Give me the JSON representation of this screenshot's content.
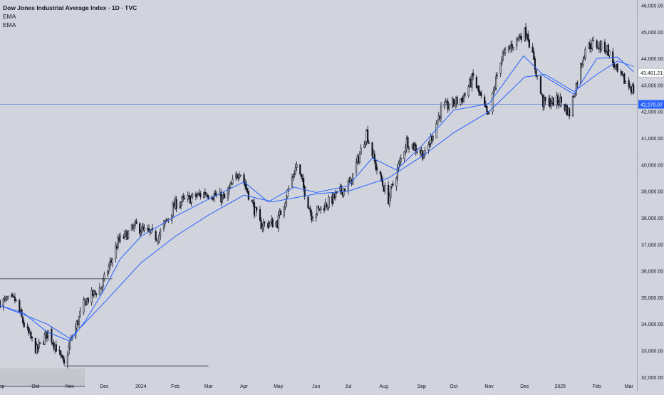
{
  "header": {
    "title": "Dow Jones Industrial Average Index · 1D · TVC",
    "indicators": [
      "EMA",
      "EMA"
    ]
  },
  "colors": {
    "background": "#d1d4dc",
    "candle": "#131722",
    "ema": "#2962ff",
    "hline": "#5b7fd6",
    "current_price_label_bg": "#ffffff",
    "hline_label_bg": "#2962ff"
  },
  "chart_data": {
    "type": "candlestick",
    "title": "Dow Jones Industrial Average Index · 1D · TVC",
    "ylim": [
      31700,
      46200
    ],
    "y_ticks": [
      32000,
      33000,
      34000,
      35000,
      36000,
      37000,
      38000,
      39000,
      40000,
      41000,
      42000,
      43000,
      44000,
      45000,
      46000
    ],
    "y_tick_labels": [
      "32,000.00",
      "33,000.00",
      "34,000.00",
      "35,000.00",
      "36,000.00",
      "37,000.00",
      "38,000.00",
      "39,000.00",
      "40,000.00",
      "41,000.00",
      "42,000.00",
      "43,000.00",
      "44,000.00",
      "45,000.00",
      "46,000.00"
    ],
    "x_tick_labels": [
      "Sep",
      "Oct",
      "Nov",
      "Dec",
      "2024",
      "Feb",
      "Mar",
      "Apr",
      "May",
      "Jun",
      "Jul",
      "Aug",
      "Sep",
      "Oct",
      "Nov",
      "Dec",
      "2025",
      "Feb",
      "Mar"
    ],
    "x_range": [
      "2023-09-01",
      "2025-03-10"
    ],
    "x_ticks": [
      "2023-09-01",
      "2023-10-02",
      "2023-11-01",
      "2023-12-01",
      "2024-01-02",
      "2024-02-01",
      "2024-03-01",
      "2024-04-01",
      "2024-05-01",
      "2024-06-03",
      "2024-07-01",
      "2024-08-01",
      "2024-09-03",
      "2024-10-01",
      "2024-11-01",
      "2024-12-02",
      "2025-01-02",
      "2025-02-03",
      "2025-03-03"
    ],
    "price_path": [
      [
        "2023-09-01",
        34830
      ],
      [
        "2023-09-14",
        34900
      ],
      [
        "2023-09-22",
        33960
      ],
      [
        "2023-10-03",
        33000
      ],
      [
        "2023-10-13",
        33700
      ],
      [
        "2023-10-20",
        33120
      ],
      [
        "2023-10-27",
        32420
      ],
      [
        "2023-11-01",
        33270
      ],
      [
        "2023-11-14",
        34830
      ],
      [
        "2023-11-29",
        35430
      ],
      [
        "2023-12-13",
        37090
      ],
      [
        "2023-12-29",
        37690
      ],
      [
        "2024-01-05",
        37470
      ],
      [
        "2024-01-17",
        37270
      ],
      [
        "2024-02-01",
        38520
      ],
      [
        "2024-02-28",
        38950
      ],
      [
        "2024-03-15",
        38710
      ],
      [
        "2024-03-28",
        39800
      ],
      [
        "2024-04-15",
        37740
      ],
      [
        "2024-04-30",
        37820
      ],
      [
        "2024-05-17",
        40000
      ],
      [
        "2024-05-30",
        38110
      ],
      [
        "2024-06-14",
        38580
      ],
      [
        "2024-07-03",
        39330
      ],
      [
        "2024-07-17",
        41200
      ],
      [
        "2024-07-25",
        39940
      ],
      [
        "2024-08-05",
        38700
      ],
      [
        "2024-08-21",
        40890
      ],
      [
        "2024-09-06",
        40350
      ],
      [
        "2024-09-20",
        42060
      ],
      [
        "2024-10-09",
        42510
      ],
      [
        "2024-10-18",
        43280
      ],
      [
        "2024-10-31",
        41760
      ],
      [
        "2024-11-11",
        43990
      ],
      [
        "2024-11-29",
        44910
      ],
      [
        "2024-12-04",
        45000
      ],
      [
        "2024-12-18",
        42330
      ],
      [
        "2025-01-02",
        42400
      ],
      [
        "2025-01-10",
        41940
      ],
      [
        "2025-01-24",
        44420
      ],
      [
        "2025-01-31",
        44550
      ],
      [
        "2025-02-12",
        44370
      ],
      [
        "2025-02-21",
        43430
      ],
      [
        "2025-03-07",
        42800
      ]
    ],
    "ema_fast_path": [
      [
        "2023-09-01",
        34700
      ],
      [
        "2023-09-22",
        34400
      ],
      [
        "2023-10-12",
        33700
      ],
      [
        "2023-11-01",
        33350
      ],
      [
        "2023-11-15",
        34150
      ],
      [
        "2023-12-01",
        35300
      ],
      [
        "2023-12-15",
        36450
      ],
      [
        "2024-01-02",
        37300
      ],
      [
        "2024-02-01",
        38050
      ],
      [
        "2024-03-01",
        38700
      ],
      [
        "2024-04-01",
        39350
      ],
      [
        "2024-04-22",
        38600
      ],
      [
        "2024-05-15",
        39150
      ],
      [
        "2024-06-03",
        38950
      ],
      [
        "2024-07-01",
        39200
      ],
      [
        "2024-07-22",
        40250
      ],
      [
        "2024-08-12",
        39800
      ],
      [
        "2024-09-03",
        40700
      ],
      [
        "2024-10-01",
        42050
      ],
      [
        "2024-11-01",
        42300
      ],
      [
        "2024-12-01",
        44100
      ],
      [
        "2024-12-20",
        43300
      ],
      [
        "2025-01-14",
        42650
      ],
      [
        "2025-02-03",
        44000
      ],
      [
        "2025-02-21",
        44050
      ],
      [
        "2025-03-07",
        43500
      ]
    ],
    "ema_slow_path": [
      [
        "2023-09-01",
        34700
      ],
      [
        "2023-10-12",
        34000
      ],
      [
        "2023-11-01",
        33450
      ],
      [
        "2023-12-01",
        34800
      ],
      [
        "2024-01-02",
        36300
      ],
      [
        "2024-02-01",
        37300
      ],
      [
        "2024-03-01",
        38100
      ],
      [
        "2024-04-01",
        38850
      ],
      [
        "2024-04-26",
        38600
      ],
      [
        "2024-06-03",
        38900
      ],
      [
        "2024-07-01",
        39000
      ],
      [
        "2024-08-05",
        39500
      ],
      [
        "2024-09-03",
        40300
      ],
      [
        "2024-10-01",
        41200
      ],
      [
        "2024-11-01",
        42000
      ],
      [
        "2024-12-02",
        43300
      ],
      [
        "2024-12-20",
        43400
      ],
      [
        "2025-01-14",
        42750
      ],
      [
        "2025-02-03",
        43400
      ],
      [
        "2025-02-21",
        43900
      ],
      [
        "2025-03-07",
        43700
      ]
    ],
    "reference_lines": [
      {
        "price": 35700,
        "from": "2023-09-01",
        "to": "2023-12-08"
      },
      {
        "price": 32420,
        "from": "2023-10-27",
        "to": "2024-03-01"
      },
      {
        "price": 31650,
        "from": "2023-09-01",
        "to": "2023-11-14"
      }
    ],
    "shaded_zone": {
      "from": "2023-09-01",
      "to": "2023-11-14",
      "low": 31650,
      "high": 32330
    },
    "horizontal_line": {
      "price": 42270.07,
      "label": "42,270.07"
    },
    "current_price": {
      "price": 43461.21,
      "label": "43,461.21"
    }
  }
}
